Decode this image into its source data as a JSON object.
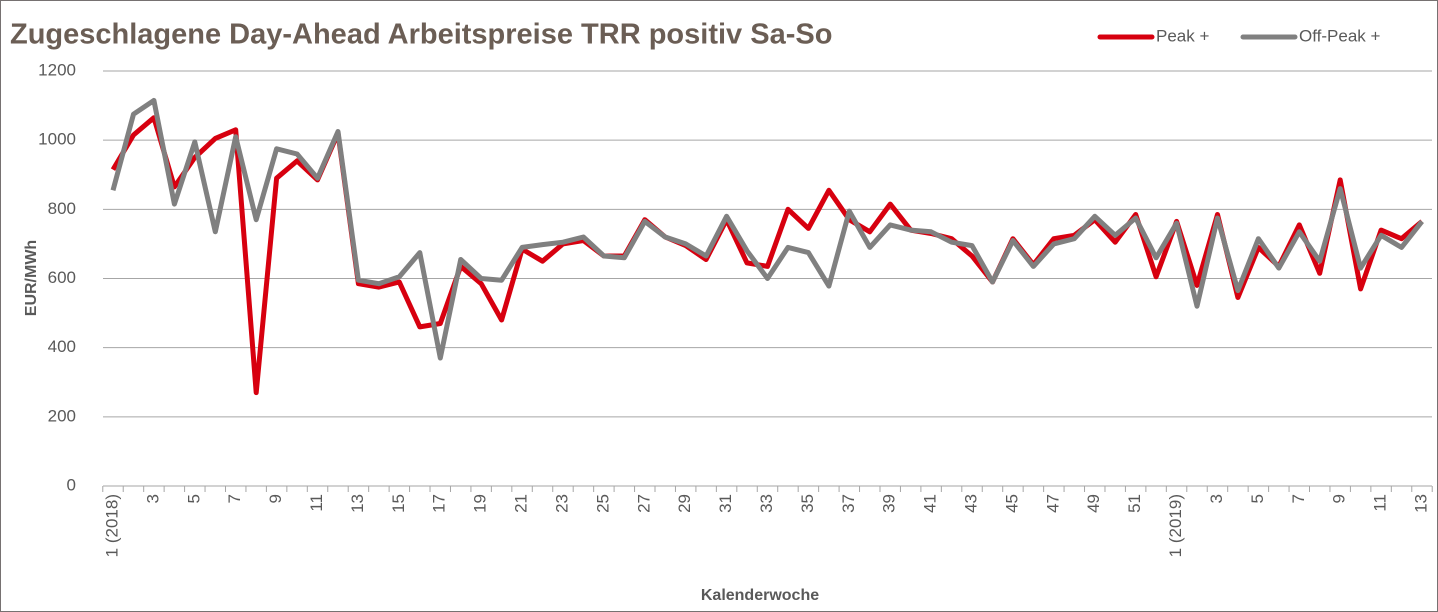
{
  "chart_data": {
    "type": "line",
    "title": "Zugeschlagene Day-Ahead Arbeitspreise TRR positiv  Sa-So",
    "x_label": "Kalenderwoche",
    "y_label": "EUR/MWh",
    "categories": [
      "1 (2018)",
      null,
      "3",
      null,
      "5",
      null,
      "7",
      null,
      "9",
      null,
      "11",
      null,
      "13",
      null,
      "15",
      null,
      "17",
      null,
      "19",
      null,
      "21",
      null,
      "23",
      null,
      "25",
      null,
      "27",
      null,
      "29",
      null,
      "31",
      null,
      "33",
      null,
      "35",
      null,
      "37",
      null,
      "39",
      null,
      "41",
      null,
      "43",
      null,
      "45",
      null,
      "47",
      null,
      "49",
      null,
      "51",
      null,
      "1 (2019)",
      null,
      "3",
      null,
      "5",
      null,
      "7",
      null,
      "9",
      null,
      "11",
      null,
      "13"
    ],
    "series": [
      {
        "name": "Peak +",
        "color": "#d7000f",
        "values": [
          915,
          1015,
          1065,
          865,
          950,
          1005,
          1030,
          270,
          890,
          940,
          885,
          1020,
          585,
          575,
          590,
          460,
          470,
          635,
          585,
          480,
          685,
          650,
          700,
          710,
          665,
          665,
          770,
          720,
          695,
          655,
          770,
          645,
          635,
          800,
          745,
          855,
          770,
          735,
          815,
          740,
          730,
          715,
          665,
          590,
          715,
          640,
          715,
          725,
          770,
          705,
          785,
          605,
          765,
          580,
          785,
          545,
          690,
          635,
          755,
          615,
          885,
          570,
          740,
          715,
          765
        ]
      },
      {
        "name": "Off-Peak +",
        "color": "#808080",
        "values": [
          855,
          1075,
          1115,
          815,
          995,
          735,
          1010,
          770,
          975,
          960,
          890,
          1025,
          595,
          585,
          605,
          675,
          370,
          655,
          600,
          595,
          690,
          698,
          705,
          720,
          665,
          660,
          765,
          720,
          700,
          665,
          780,
          680,
          600,
          690,
          675,
          578,
          795,
          690,
          755,
          740,
          735,
          705,
          695,
          590,
          710,
          635,
          700,
          715,
          780,
          725,
          775,
          660,
          760,
          520,
          775,
          565,
          715,
          630,
          735,
          650,
          860,
          630,
          725,
          690,
          765
        ]
      }
    ],
    "ylim": [
      0,
      1200
    ],
    "yticks": [
      0,
      200,
      400,
      600,
      800,
      1000,
      1200
    ],
    "grid": true,
    "legend": "top-right"
  }
}
